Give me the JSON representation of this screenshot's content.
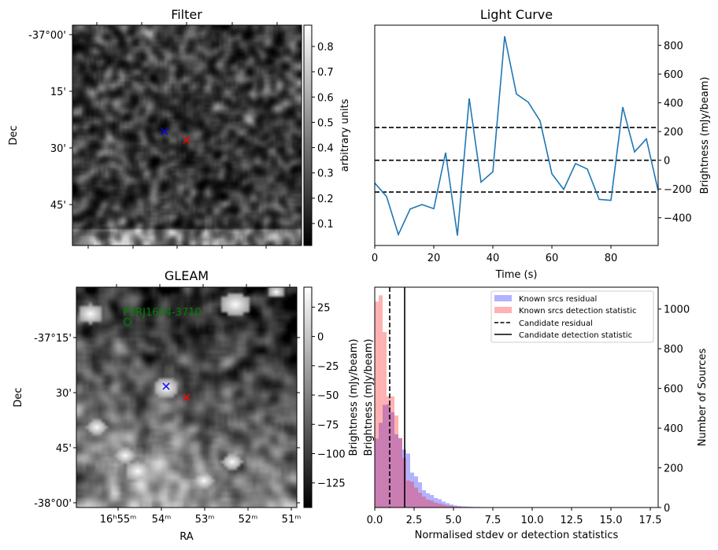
{
  "chart_data": [
    {
      "type": "heatmap",
      "title": "Filter",
      "ylabel": "Dec",
      "yticks": [
        "-37°00'",
        "15'",
        "30'",
        "45'"
      ],
      "colorbar": {
        "label": "arbitrary units",
        "ticks": [
          "0.1",
          "0.2",
          "0.3",
          "0.4",
          "0.5",
          "0.6",
          "0.7",
          "0.8"
        ],
        "ticks_values": [
          0.1,
          0.2,
          0.3,
          0.4,
          0.5,
          0.6,
          0.7,
          0.8
        ],
        "range": [
          0.013,
          0.884
        ],
        "colormap": "gray"
      },
      "markers": [
        {
          "symbol": "x",
          "color": "#0000ff"
        },
        {
          "symbol": "x",
          "color": "#ff0000"
        }
      ]
    },
    {
      "type": "line",
      "title": "Light Curve",
      "xlabel": "Time (s)",
      "ylabel": "Brightness (mJy/beam)",
      "xlim": [
        0,
        96
      ],
      "ylim": [
        -593,
        940
      ],
      "xticks": [
        0,
        20,
        40,
        60,
        80
      ],
      "yticks": [
        -400,
        -200,
        0,
        200,
        400,
        600,
        800
      ],
      "ytick_labels": [
        "−400",
        "−200",
        "0",
        "200",
        "400",
        "600",
        "800"
      ],
      "x": [
        0,
        4,
        8,
        12,
        16,
        20,
        24,
        28,
        32,
        36,
        40,
        44,
        48,
        52,
        56,
        60,
        64,
        68,
        72,
        76,
        80,
        84,
        88,
        92,
        96
      ],
      "values": [
        -158,
        -252,
        -517,
        -339,
        -308,
        -337,
        53,
        -524,
        431,
        -152,
        -80,
        863,
        461,
        404,
        274,
        -94,
        -203,
        -23,
        -61,
        -272,
        -279,
        370,
        58,
        149,
        -212
      ],
      "color": "#1f77b4",
      "hlines": [
        228,
        0,
        -221
      ]
    },
    {
      "type": "heatmap",
      "title": "GLEAM",
      "xlabel": "RA",
      "ylabel": "Dec",
      "xticks": [
        "16h55m",
        "54m",
        "53m",
        "52m",
        "51m"
      ],
      "yticks": [
        "-37°15'",
        "30'",
        "45'",
        "-38°00'"
      ],
      "annotation": "PSRJ1654-3710",
      "annotation_color": "#008000",
      "colorbar": {
        "label": "Brightness (mJy/beam)",
        "ticks": [
          "25",
          "0",
          "−25",
          "−50",
          "−75",
          "−100",
          "−125"
        ],
        "ticks_values": [
          25,
          0,
          -25,
          -50,
          -75,
          -100,
          -125
        ],
        "range": [
          -146,
          42
        ],
        "colormap": "gray"
      },
      "markers": [
        {
          "symbol": "x",
          "color": "#0000ff"
        },
        {
          "symbol": "x",
          "color": "#ff0000"
        }
      ]
    },
    {
      "type": "bar",
      "subtype": "histogram",
      "xlabel": "Normalised stdev or detection statistics",
      "ylabel": "Brightness (mJy/beam)",
      "y2label": "Number of Sources",
      "xlim": [
        0,
        18
      ],
      "ylim": [
        0,
        1110
      ],
      "xticks": [
        "0.0",
        "2.5",
        "5.0",
        "7.5",
        "10.0",
        "12.5",
        "15.0",
        "17.5"
      ],
      "xticks_values": [
        0,
        2.5,
        5,
        7.5,
        10,
        12.5,
        15,
        17.5
      ],
      "yticks": [
        0,
        200,
        400,
        600,
        800,
        1000
      ],
      "bin_width": 0.25,
      "series": [
        {
          "name": "Known srcs residual",
          "color": "#0000ff",
          "alpha": 0.3,
          "values": [
            347,
            427,
            517,
            520,
            480,
            369,
            349,
            292,
            272,
            176,
            157,
            127,
            87,
            72,
            63,
            48,
            42,
            30,
            22,
            15,
            10,
            8,
            6,
            5,
            4,
            3,
            3,
            2,
            1,
            2,
            1,
            1,
            1,
            1,
            0,
            1,
            0,
            0,
            0,
            1,
            0,
            0,
            0,
            0,
            0,
            0,
            0,
            0,
            1,
            0,
            0,
            0,
            0,
            0,
            0,
            0,
            0,
            0,
            0,
            0,
            0,
            0,
            0,
            0,
            0,
            0,
            0,
            0,
            0,
            0
          ]
        },
        {
          "name": "Known srcs detection statistic",
          "color": "#ff0000",
          "alpha": 0.3,
          "values": [
            1037,
            1069,
            884,
            560,
            560,
            464,
            350,
            250,
            136,
            130,
            100,
            75,
            55,
            40,
            35,
            25,
            20,
            15,
            10,
            8,
            6,
            4,
            3,
            3,
            2,
            2,
            1,
            1,
            1,
            1,
            1,
            0,
            1,
            1,
            0,
            1,
            1,
            0,
            0,
            0,
            1,
            0,
            0,
            0,
            0,
            0,
            0,
            0,
            0,
            1,
            0,
            0,
            0,
            0,
            0,
            0,
            0,
            0,
            0,
            0,
            0,
            0,
            0,
            0,
            0,
            0,
            0,
            0,
            1,
            0
          ]
        }
      ],
      "vlines": [
        {
          "name": "Candidate residual",
          "value": 0.95,
          "style": "dashed"
        },
        {
          "name": "Candidate detection statistic",
          "value": 1.9,
          "style": "solid"
        }
      ],
      "legend_position": "top-right"
    }
  ]
}
